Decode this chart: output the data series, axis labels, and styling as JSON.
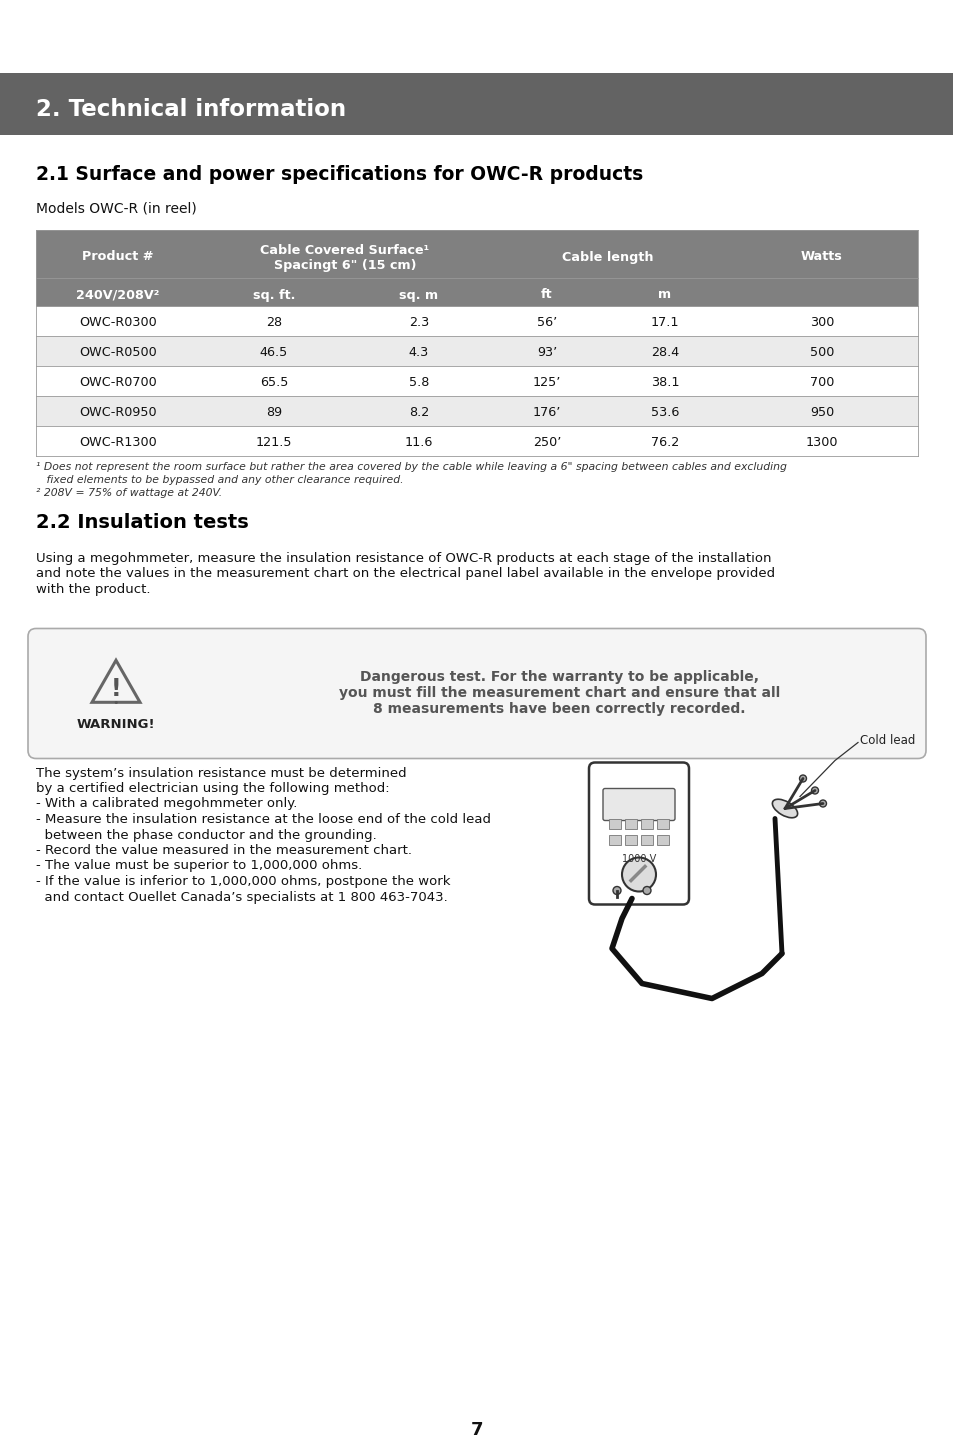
{
  "page_bg": "#ffffff",
  "header_bg": "#636363",
  "header_text": "2. Technical information",
  "header_text_color": "#ffffff",
  "section1_title": "2.1 Surface and power specifications for OWC-R products",
  "section1_subtitle": "Models OWC-R (in reel)",
  "table_header_bg": "#808080",
  "table_alt_row_bg": "#ebebeb",
  "table_row_bg": "#ffffff",
  "table_data": [
    [
      "OWC-R0300",
      "28",
      "2.3",
      "56’",
      "17.1",
      "300"
    ],
    [
      "OWC-R0500",
      "46.5",
      "4.3",
      "93’",
      "28.4",
      "500"
    ],
    [
      "OWC-R0700",
      "65.5",
      "5.8",
      "125’",
      "38.1",
      "700"
    ],
    [
      "OWC-R0950",
      "89",
      "8.2",
      "176’",
      "53.6",
      "950"
    ],
    [
      "OWC-R1300",
      "121.5",
      "11.6",
      "250’",
      "76.2",
      "1300"
    ]
  ],
  "footnote1": "¹ Does not represent the room surface but rather the area covered by the cable while leaving a 6\" spacing between cables and excluding",
  "footnote1b": "   fixed elements to be bypassed and any other clearance required.",
  "footnote2": "² 208V = 75% of wattage at 240V.",
  "section2_title": "2.2 Insulation tests",
  "section2_body_lines": [
    "Using a megohmmeter, measure the insulation resistance of OWC-R products at each stage of the installation",
    "and note the values in the measurement chart on the electrical panel label available in the envelope provided",
    "with the product."
  ],
  "warning_text_line1": "Dangerous test. For the warranty to be applicable,",
  "warning_text_line2": "you must fill the measurement chart and ensure that all",
  "warning_text_line3": "8 measurements have been correctly recorded.",
  "warning_label": "WARNING!",
  "insulation_body_lines": [
    "The system’s insulation resistance must be determined",
    "by a certified electrician using the following method:",
    "- With a calibrated megohmmeter only.",
    "- Measure the insulation resistance at the loose end of the cold lead",
    "  between the phase conductor and the grounding.",
    "- Record the value measured in the measurement chart.",
    "- The value must be superior to 1,000,000 ohms.",
    "- If the value is inferior to 1,000,000 ohms, postpone the work",
    "  and contact Ouellet Canada’s specialists at 1 800 463-7043."
  ],
  "cold_lead_label": "Cold lead",
  "page_number": "7"
}
